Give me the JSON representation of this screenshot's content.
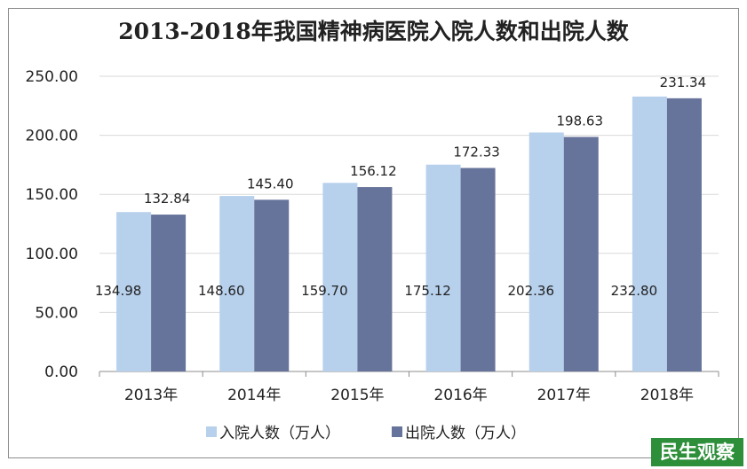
{
  "chart_data": {
    "type": "bar",
    "title": "2013-2018年我国精神病医院入院人数和出院人数",
    "categories": [
      "2013年",
      "2014年",
      "2015年",
      "2016年",
      "2017年",
      "2018年"
    ],
    "series": [
      {
        "name": "入院人数（万人）",
        "values": [
          134.98,
          148.6,
          159.7,
          175.12,
          202.36,
          232.8
        ],
        "color": "#b7d0ec"
      },
      {
        "name": "出院人数（万人）",
        "values": [
          132.84,
          145.4,
          156.12,
          172.33,
          198.63,
          231.34
        ],
        "color": "#66739a"
      }
    ],
    "yticks": [
      "0.00",
      "50.00",
      "100.00",
      "150.00",
      "200.00",
      "250.00"
    ],
    "ylim": [
      0,
      250
    ],
    "grid": true,
    "legend_position": "bottom"
  },
  "watermark": "民生观察"
}
